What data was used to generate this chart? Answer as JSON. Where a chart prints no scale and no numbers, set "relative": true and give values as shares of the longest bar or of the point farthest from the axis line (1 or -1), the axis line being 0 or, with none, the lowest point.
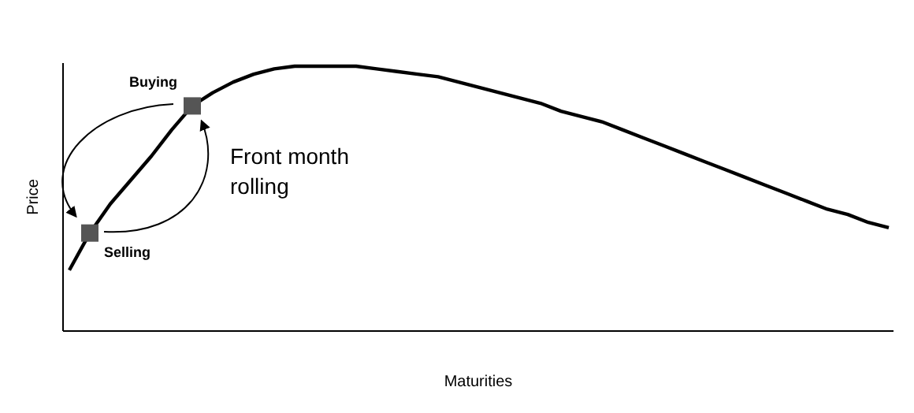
{
  "chart_data": {
    "type": "line",
    "relative": true,
    "xlabel": "Maturities",
    "ylabel": "Price",
    "categories": [
      null,
      null,
      null,
      null,
      null,
      null,
      null,
      null,
      null,
      null,
      null,
      null,
      null,
      null,
      null,
      null,
      null,
      null,
      null,
      null,
      null,
      null,
      null,
      null,
      null,
      null,
      null,
      null,
      null,
      null,
      null,
      null,
      null,
      null,
      null,
      null,
      null,
      null,
      null,
      null,
      null
    ],
    "series": [
      {
        "color": "#000000",
        "marker": "none",
        "values": [
          0.23,
          0.37,
          0.48,
          0.57,
          0.66,
          0.76,
          0.85,
          0.9,
          0.94,
          0.97,
          0.99,
          1.0,
          1,
          1,
          1.0,
          0.99,
          0.98,
          0.97,
          0.96,
          0.94,
          0.92,
          0.9,
          0.88,
          0.86,
          0.83,
          0.81,
          0.79,
          0.76,
          0.73,
          0.7,
          0.67,
          0.64,
          0.61,
          0.58,
          0.55,
          0.52,
          0.49,
          0.46,
          0.44,
          0.41,
          0.39
        ]
      }
    ],
    "annotations": [
      "Buying",
      "Selling",
      "Front month rolling"
    ]
  }
}
